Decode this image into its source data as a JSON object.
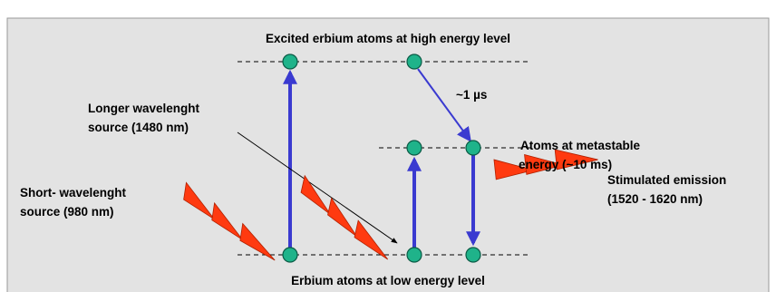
{
  "title": "Excited erbium atoms at high energy level",
  "bottom_label": "Erbium atoms  at low energy level",
  "decay_time": "~1 µs",
  "labels": {
    "short_source": [
      "Short- wavelenght",
      "source (980 nm)"
    ],
    "long_source": [
      "Longer wavelenght",
      "source (1480 nm)"
    ],
    "metastable": [
      "Atoms at metastable",
      "energy (~10 ms)"
    ],
    "emission": [
      "Stimulated emission",
      "(1520 - 1620 nm)"
    ]
  }
}
